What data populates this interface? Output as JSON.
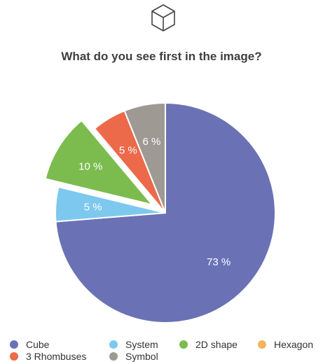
{
  "header": {
    "icon": "cube-icon"
  },
  "chart_data": {
    "type": "pie",
    "title": "What do you see first in the image?",
    "slices": [
      {
        "label": "Cube",
        "value": 73,
        "display": "73 %",
        "color": "#6a72b5",
        "exploded": false
      },
      {
        "label": "System",
        "value": 5,
        "display": "5 %",
        "color": "#7dc8ef",
        "exploded": false
      },
      {
        "label": "2D shape",
        "value": 10,
        "display": "10 %",
        "color": "#7cbc4f",
        "exploded": true
      },
      {
        "label": "Hexagon",
        "value": 0,
        "display": "",
        "color": "#f3b45b",
        "exploded": false
      },
      {
        "label": "3 Rhombuses",
        "value": 5,
        "display": "5 %",
        "color": "#ec6a4a",
        "exploded": false
      },
      {
        "label": "Symbol",
        "value": 6,
        "display": "6 %",
        "color": "#9f9994",
        "exploded": false
      }
    ],
    "legend_position": "bottom"
  }
}
